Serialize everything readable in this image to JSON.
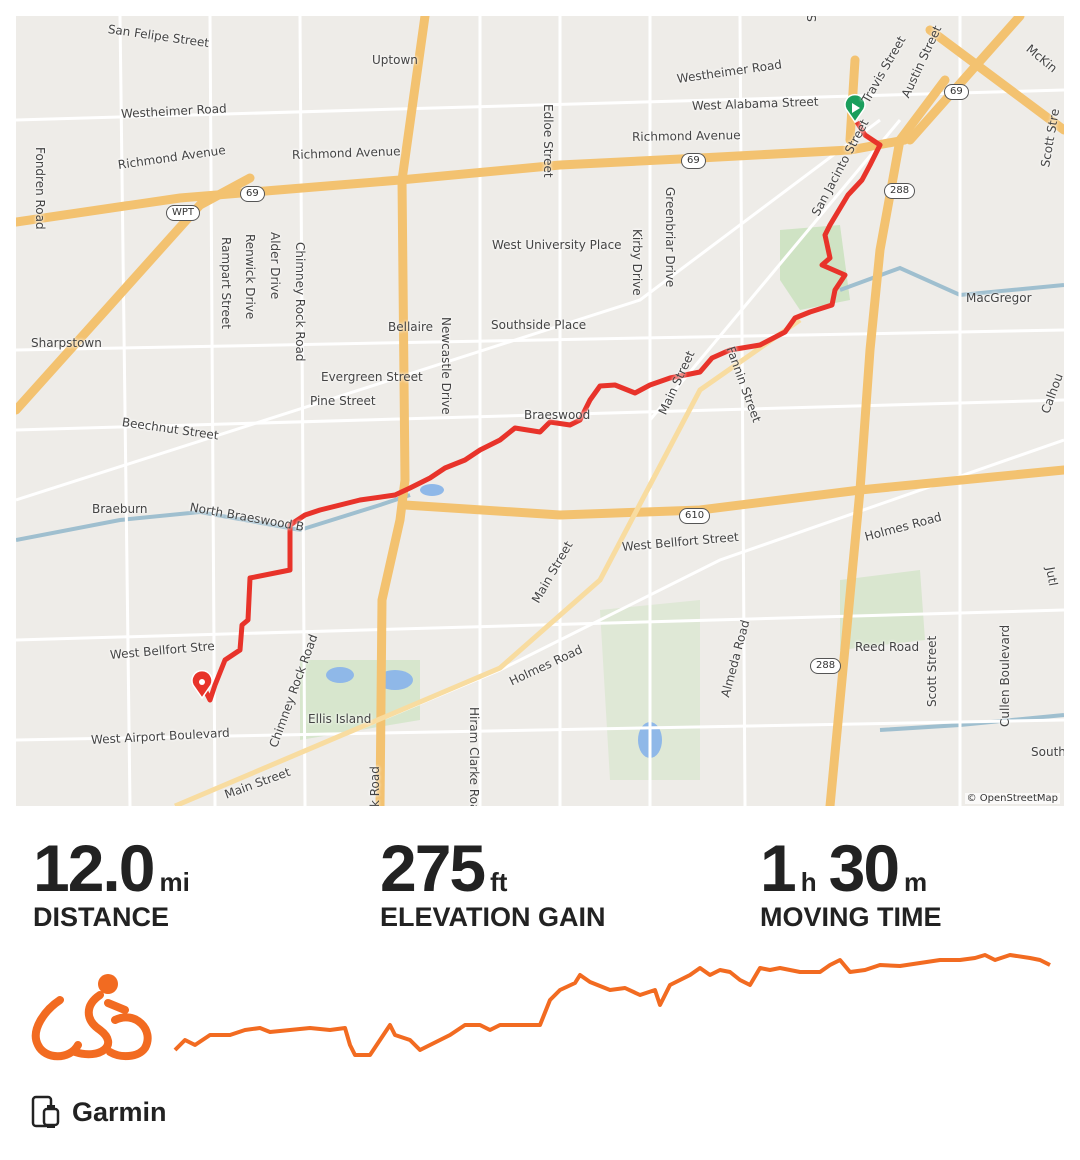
{
  "map": {
    "attribution": "© OpenStreetMap",
    "labels": [
      "San Felipe Street",
      "Uptown",
      "Westheimer Road",
      "West Alabama Street",
      "Westheimer Road",
      "Richmond Avenue",
      "Richmond Avenue",
      "Richmond Avenue",
      "Fondren Road",
      "Edloe Street",
      "Stanford S",
      "Travis Street",
      "Austin Street",
      "McKin",
      "San Jacinto Street",
      "Scott Stre",
      "Rampart Street",
      "Renwick Drive",
      "Alder Drive",
      "Chimney Rock Road",
      "West University Place",
      "Kirby Drive",
      "Greenbriar Drive",
      "MacGregor",
      "Sharpstown",
      "Bellaire",
      "Southside Place",
      "Newcastle Drive",
      "Evergreen Street",
      "Pine Street",
      "Main Street",
      "Fannin Street",
      "Beechnut Street",
      "Braeswood",
      "Calhou",
      "Braeburn",
      "North Braeswood B",
      "West Bellfort Street",
      "Holmes Road",
      "Main Street",
      "Almeda Road",
      "Reed Road",
      "Scott Street",
      "Cullen Boulevard",
      "West Bellfort Stre",
      "Chimney Rock Road",
      "Holmes Road",
      "Ellis Island",
      "West Airport Boulevard",
      "Main Street",
      "k Road",
      "Hiram Clarke Road",
      "South",
      "Jutl"
    ],
    "shields": [
      "69",
      "69",
      "WPT",
      "69",
      "288",
      "610",
      "288"
    ],
    "start_marker_color": "#1a9e5c",
    "end_marker_color": "#e8332a",
    "route_color": "#e8332a"
  },
  "stats": {
    "distance": {
      "value": "12.0",
      "unit": "mi",
      "label": "DISTANCE"
    },
    "elevation": {
      "value": "275",
      "unit": "ft",
      "label": "ELEVATION GAIN"
    },
    "time": {
      "hours": "1",
      "hours_unit": "h",
      "minutes": "30",
      "minutes_unit": "m",
      "label": "MOVING TIME"
    }
  },
  "activity": {
    "type_icon": "cycling-icon",
    "accent": "#f26b21"
  },
  "device": {
    "icon": "phone-watch-icon",
    "name": "Garmin"
  }
}
